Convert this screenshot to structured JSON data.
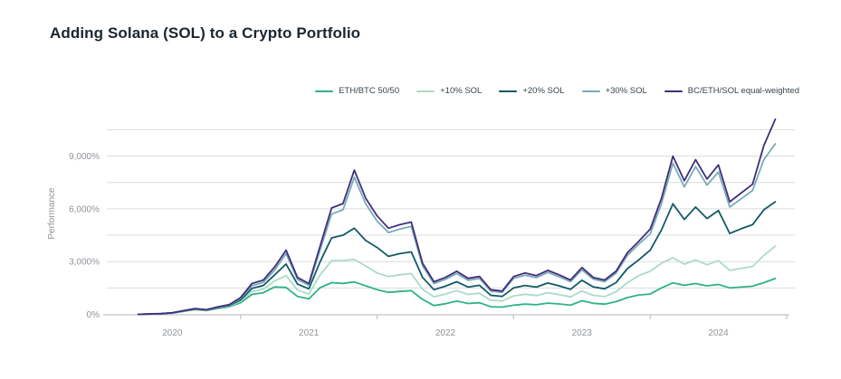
{
  "page": {
    "title": "Adding Solana (SOL) to a Crypto Portfolio"
  },
  "chart_data": {
    "type": "line",
    "title": "Adding Solana (SOL) to a Crypto Portfolio",
    "xlabel": "",
    "ylabel": "Performance",
    "x_unit": "time",
    "x_start": {
      "year": 2020,
      "month": 4
    },
    "x_interval": "monthly",
    "xlim": [
      2020.02,
      2025.06
    ],
    "ylim": [
      0,
      11500
    ],
    "grid": {
      "y_step": 1500,
      "y_max": 10500,
      "color": "#dcdcdc",
      "vertical": false
    },
    "axis_color": "#c4c4c4",
    "text_color": "#8e9398",
    "yticks": [
      {
        "value": 0,
        "label": "0%"
      },
      {
        "value": 3000,
        "label": "3,000%"
      },
      {
        "value": 6000,
        "label": "6,000%"
      },
      {
        "value": 9000,
        "label": "9,000%"
      }
    ],
    "xticks_years": [
      2021,
      2022,
      2023,
      2024,
      2025
    ],
    "year_labels": [
      {
        "t": 2020.5,
        "label": "2020"
      },
      {
        "t": 2021.5,
        "label": "2021"
      },
      {
        "t": 2022.5,
        "label": "2022"
      },
      {
        "t": 2023.5,
        "label": "2023"
      },
      {
        "t": 2024.5,
        "label": "2024"
      }
    ],
    "legend_position": "top-right",
    "series": [
      {
        "name": "ETH/BTC 50/50",
        "color": "#2fb383",
        "values": [
          0,
          17,
          30,
          72,
          175,
          275,
          210,
          330,
          430,
          660,
          1130,
          1230,
          1560,
          1530,
          1020,
          880,
          1520,
          1800,
          1760,
          1840,
          1620,
          1400,
          1250,
          1300,
          1350,
          850,
          500,
          600,
          750,
          620,
          660,
          430,
          410,
          520,
          580,
          545,
          640,
          590,
          520,
          770,
          630,
          580,
          720,
          950,
          1100,
          1150,
          1500,
          1790,
          1650,
          1750,
          1620,
          1700,
          1500,
          1550,
          1600,
          1800,
          2040
        ]
      },
      {
        "name": "+10% SOL",
        "color": "#abdcc5",
        "values": [
          0,
          19,
          33,
          78,
          185,
          290,
          222,
          350,
          462,
          740,
          1300,
          1430,
          1900,
          2200,
          1380,
          1160,
          2250,
          3050,
          3060,
          3120,
          2750,
          2350,
          2150,
          2250,
          2320,
          1420,
          1000,
          1150,
          1350,
          1130,
          1200,
          800,
          760,
          1050,
          1140,
          1070,
          1230,
          1120,
          990,
          1330,
          1080,
          1010,
          1280,
          1800,
          2200,
          2450,
          2900,
          3220,
          2850,
          3100,
          2820,
          3050,
          2500,
          2620,
          2720,
          3350,
          3880
        ]
      },
      {
        "name": "+20% SOL",
        "color": "#115b66",
        "values": [
          0,
          21,
          35,
          82,
          192,
          300,
          235,
          375,
          495,
          820,
          1470,
          1640,
          2250,
          2860,
          1720,
          1450,
          3000,
          4350,
          4500,
          4900,
          4200,
          3800,
          3300,
          3450,
          3550,
          2100,
          1400,
          1600,
          1850,
          1550,
          1650,
          1080,
          1020,
          1500,
          1640,
          1550,
          1780,
          1620,
          1420,
          1940,
          1560,
          1450,
          1800,
          2600,
          3100,
          3650,
          4800,
          6290,
          5400,
          6100,
          5450,
          5900,
          4600,
          4870,
          5100,
          5950,
          6400
        ]
      },
      {
        "name": "+30% SOL",
        "color": "#77abb8",
        "values": [
          0,
          23,
          38,
          86,
          200,
          315,
          248,
          400,
          525,
          900,
          1620,
          1820,
          2520,
          3450,
          1990,
          1650,
          3680,
          5700,
          5950,
          7800,
          6280,
          5300,
          4650,
          4850,
          5000,
          2760,
          1750,
          1990,
          2320,
          1940,
          2040,
          1330,
          1250,
          2050,
          2230,
          2090,
          2380,
          2140,
          1860,
          2530,
          2000,
          1860,
          2340,
          3350,
          3990,
          4580,
          6300,
          8600,
          7250,
          8400,
          7350,
          8100,
          6100,
          6570,
          7050,
          8800,
          9700
        ]
      },
      {
        "name": "BC/ETH/SOL equal-weighted",
        "color": "#412e7c",
        "values": [
          0,
          25,
          40,
          90,
          210,
          330,
          260,
          420,
          550,
          950,
          1750,
          1950,
          2700,
          3650,
          2100,
          1750,
          3900,
          6050,
          6300,
          8200,
          6600,
          5600,
          4900,
          5100,
          5250,
          2900,
          1850,
          2100,
          2450,
          2050,
          2150,
          1400,
          1320,
          2150,
          2350,
          2200,
          2500,
          2250,
          1950,
          2660,
          2100,
          1950,
          2450,
          3500,
          4150,
          4840,
          6600,
          9000,
          7600,
          8800,
          7700,
          8500,
          6400,
          6900,
          7400,
          9600,
          11100
        ]
      }
    ]
  }
}
